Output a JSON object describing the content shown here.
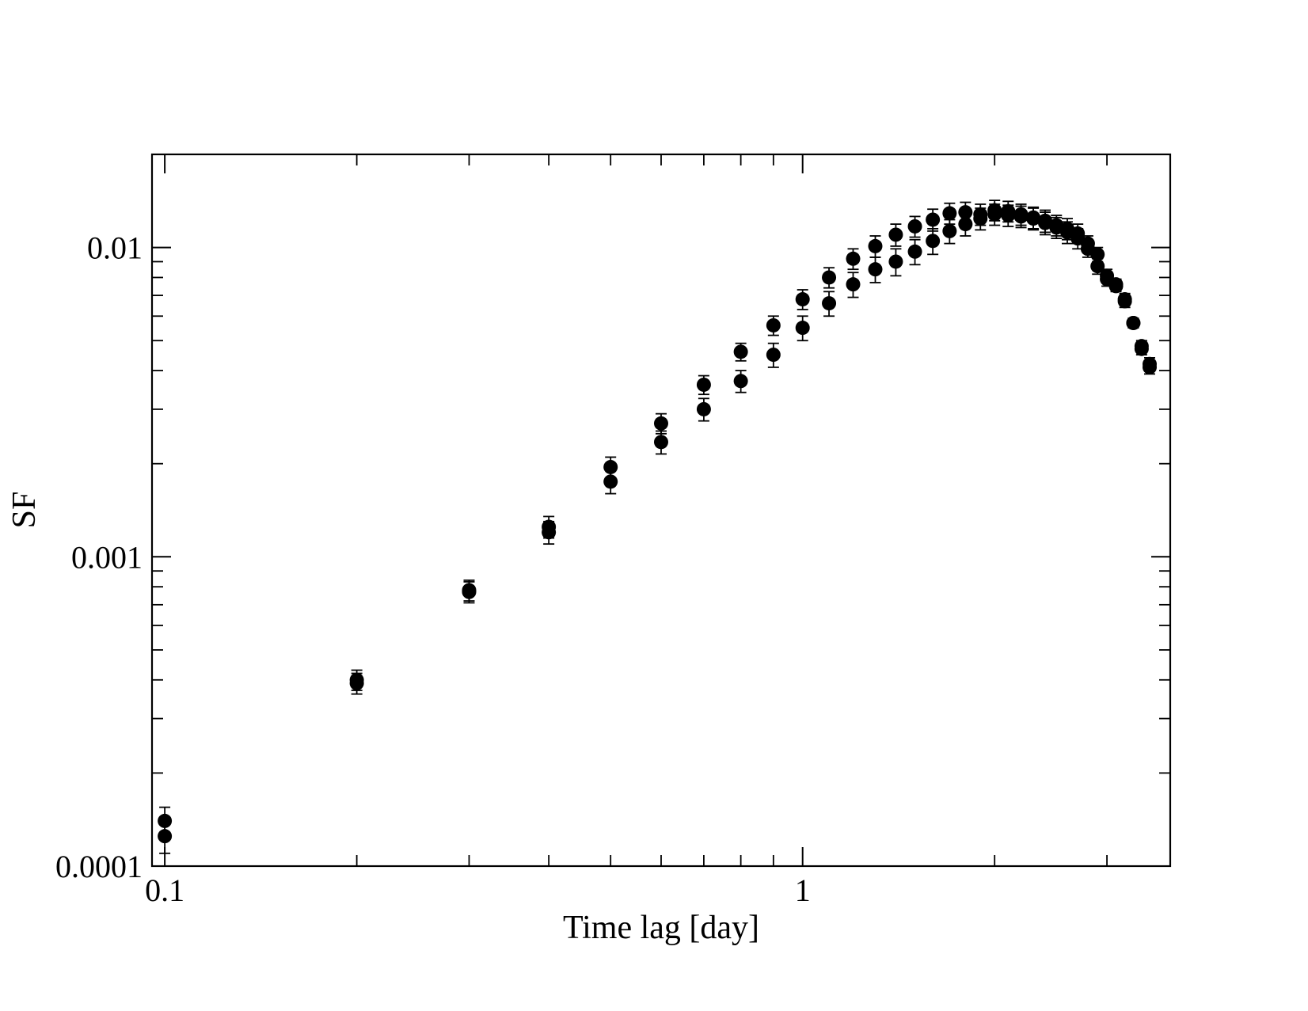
{
  "chart_data": {
    "type": "scatter",
    "xlabel": "Time lag [day]",
    "ylabel": "SF",
    "xscale": "log",
    "yscale": "log",
    "xlim": [
      0.0955,
      3.77
    ],
    "ylim": [
      0.0001,
      0.02
    ],
    "grid": false,
    "marker_color": "#000000",
    "x_ticks": [
      {
        "value": 0.1,
        "label": "0.1"
      },
      {
        "value": 1,
        "label": "1"
      }
    ],
    "y_ticks": [
      {
        "value": 0.0001,
        "label": "0.0001"
      },
      {
        "value": 0.001,
        "label": "0.001"
      },
      {
        "value": 0.01,
        "label": "0.01"
      }
    ],
    "series": [
      {
        "points": [
          {
            "x": 0.1,
            "y": 0.00014,
            "err": 1.5e-05
          },
          {
            "x": 0.2,
            "y": 0.00039,
            "err": 3e-05
          },
          {
            "x": 0.3,
            "y": 0.00078,
            "err": 6e-05
          },
          {
            "x": 0.4,
            "y": 0.00125,
            "err": 0.0001
          },
          {
            "x": 0.5,
            "y": 0.00195,
            "err": 0.00015
          },
          {
            "x": 0.6,
            "y": 0.0027,
            "err": 0.0002
          },
          {
            "x": 0.7,
            "y": 0.0036,
            "err": 0.00025
          },
          {
            "x": 0.8,
            "y": 0.0046,
            "err": 0.0003
          },
          {
            "x": 0.9,
            "y": 0.0056,
            "err": 0.0004
          },
          {
            "x": 1.0,
            "y": 0.0068,
            "err": 0.0005
          },
          {
            "x": 1.1,
            "y": 0.008,
            "err": 0.0006
          },
          {
            "x": 1.2,
            "y": 0.0092,
            "err": 0.0007
          },
          {
            "x": 1.3,
            "y": 0.0101,
            "err": 0.0008
          },
          {
            "x": 1.4,
            "y": 0.011,
            "err": 0.0009
          },
          {
            "x": 1.5,
            "y": 0.0117,
            "err": 0.0009
          },
          {
            "x": 1.6,
            "y": 0.0123,
            "err": 0.001
          },
          {
            "x": 1.7,
            "y": 0.0129,
            "err": 0.001
          },
          {
            "x": 1.8,
            "y": 0.013,
            "err": 0.001
          },
          {
            "x": 1.9,
            "y": 0.0128,
            "err": 0.001
          },
          {
            "x": 2.0,
            "y": 0.0132,
            "err": 0.001
          },
          {
            "x": 2.1,
            "y": 0.0131,
            "err": 0.001
          },
          {
            "x": 2.2,
            "y": 0.0128,
            "err": 0.001
          },
          {
            "x": 2.3,
            "y": 0.0125,
            "err": 0.001
          },
          {
            "x": 2.4,
            "y": 0.0122,
            "err": 0.001
          },
          {
            "x": 2.5,
            "y": 0.0118,
            "err": 0.0009
          },
          {
            "x": 2.6,
            "y": 0.0115,
            "err": 0.0009
          },
          {
            "x": 2.7,
            "y": 0.0111,
            "err": 0.0008
          },
          {
            "x": 2.8,
            "y": 0.0103,
            "err": 0.0006
          },
          {
            "x": 2.9,
            "y": 0.0095,
            "err": 0.0005
          },
          {
            "x": 3.0,
            "y": 0.0081,
            "err": 0.0004
          },
          {
            "x": 3.1,
            "y": 0.0076,
            "err": 0.0003
          },
          {
            "x": 3.2,
            "y": 0.0068,
            "err": 0.0003
          },
          {
            "x": 3.3,
            "y": 0.0057,
            "err": 0.0002
          },
          {
            "x": 3.4,
            "y": 0.0048,
            "err": 0.0002
          },
          {
            "x": 3.5,
            "y": 0.0042,
            "err": 0.0002
          }
        ]
      },
      {
        "points": [
          {
            "x": 0.1,
            "y": 0.000125,
            "err": 1.5e-05
          },
          {
            "x": 0.2,
            "y": 0.0004,
            "err": 3e-05
          },
          {
            "x": 0.3,
            "y": 0.00077,
            "err": 6e-05
          },
          {
            "x": 0.4,
            "y": 0.0012,
            "err": 0.0001
          },
          {
            "x": 0.5,
            "y": 0.00175,
            "err": 0.00015
          },
          {
            "x": 0.6,
            "y": 0.00235,
            "err": 0.0002
          },
          {
            "x": 0.7,
            "y": 0.003,
            "err": 0.00025
          },
          {
            "x": 0.8,
            "y": 0.0037,
            "err": 0.0003
          },
          {
            "x": 0.9,
            "y": 0.0045,
            "err": 0.0004
          },
          {
            "x": 1.0,
            "y": 0.0055,
            "err": 0.0005
          },
          {
            "x": 1.1,
            "y": 0.0066,
            "err": 0.0006
          },
          {
            "x": 1.2,
            "y": 0.0076,
            "err": 0.0007
          },
          {
            "x": 1.3,
            "y": 0.0085,
            "err": 0.0008
          },
          {
            "x": 1.4,
            "y": 0.009,
            "err": 0.0009
          },
          {
            "x": 1.5,
            "y": 0.0097,
            "err": 0.0009
          },
          {
            "x": 1.6,
            "y": 0.0105,
            "err": 0.001
          },
          {
            "x": 1.7,
            "y": 0.0113,
            "err": 0.001
          },
          {
            "x": 1.8,
            "y": 0.0119,
            "err": 0.001
          },
          {
            "x": 1.9,
            "y": 0.0124,
            "err": 0.001
          },
          {
            "x": 2.0,
            "y": 0.0128,
            "err": 0.001
          },
          {
            "x": 2.1,
            "y": 0.0127,
            "err": 0.001
          },
          {
            "x": 2.2,
            "y": 0.0126,
            "err": 0.001
          },
          {
            "x": 2.3,
            "y": 0.0124,
            "err": 0.001
          },
          {
            "x": 2.4,
            "y": 0.012,
            "err": 0.001
          },
          {
            "x": 2.5,
            "y": 0.0116,
            "err": 0.0009
          },
          {
            "x": 2.6,
            "y": 0.0112,
            "err": 0.0009
          },
          {
            "x": 2.7,
            "y": 0.0107,
            "err": 0.0008
          },
          {
            "x": 2.8,
            "y": 0.0099,
            "err": 0.0006
          },
          {
            "x": 2.9,
            "y": 0.0087,
            "err": 0.0005
          },
          {
            "x": 3.0,
            "y": 0.0079,
            "err": 0.0004
          },
          {
            "x": 3.1,
            "y": 0.0075,
            "err": 0.0003
          },
          {
            "x": 3.2,
            "y": 0.0067,
            "err": 0.0003
          },
          {
            "x": 3.3,
            "y": 0.0057,
            "err": 0.0002
          },
          {
            "x": 3.4,
            "y": 0.0047,
            "err": 0.0002
          },
          {
            "x": 3.5,
            "y": 0.0041,
            "err": 0.0002
          }
        ]
      }
    ]
  }
}
